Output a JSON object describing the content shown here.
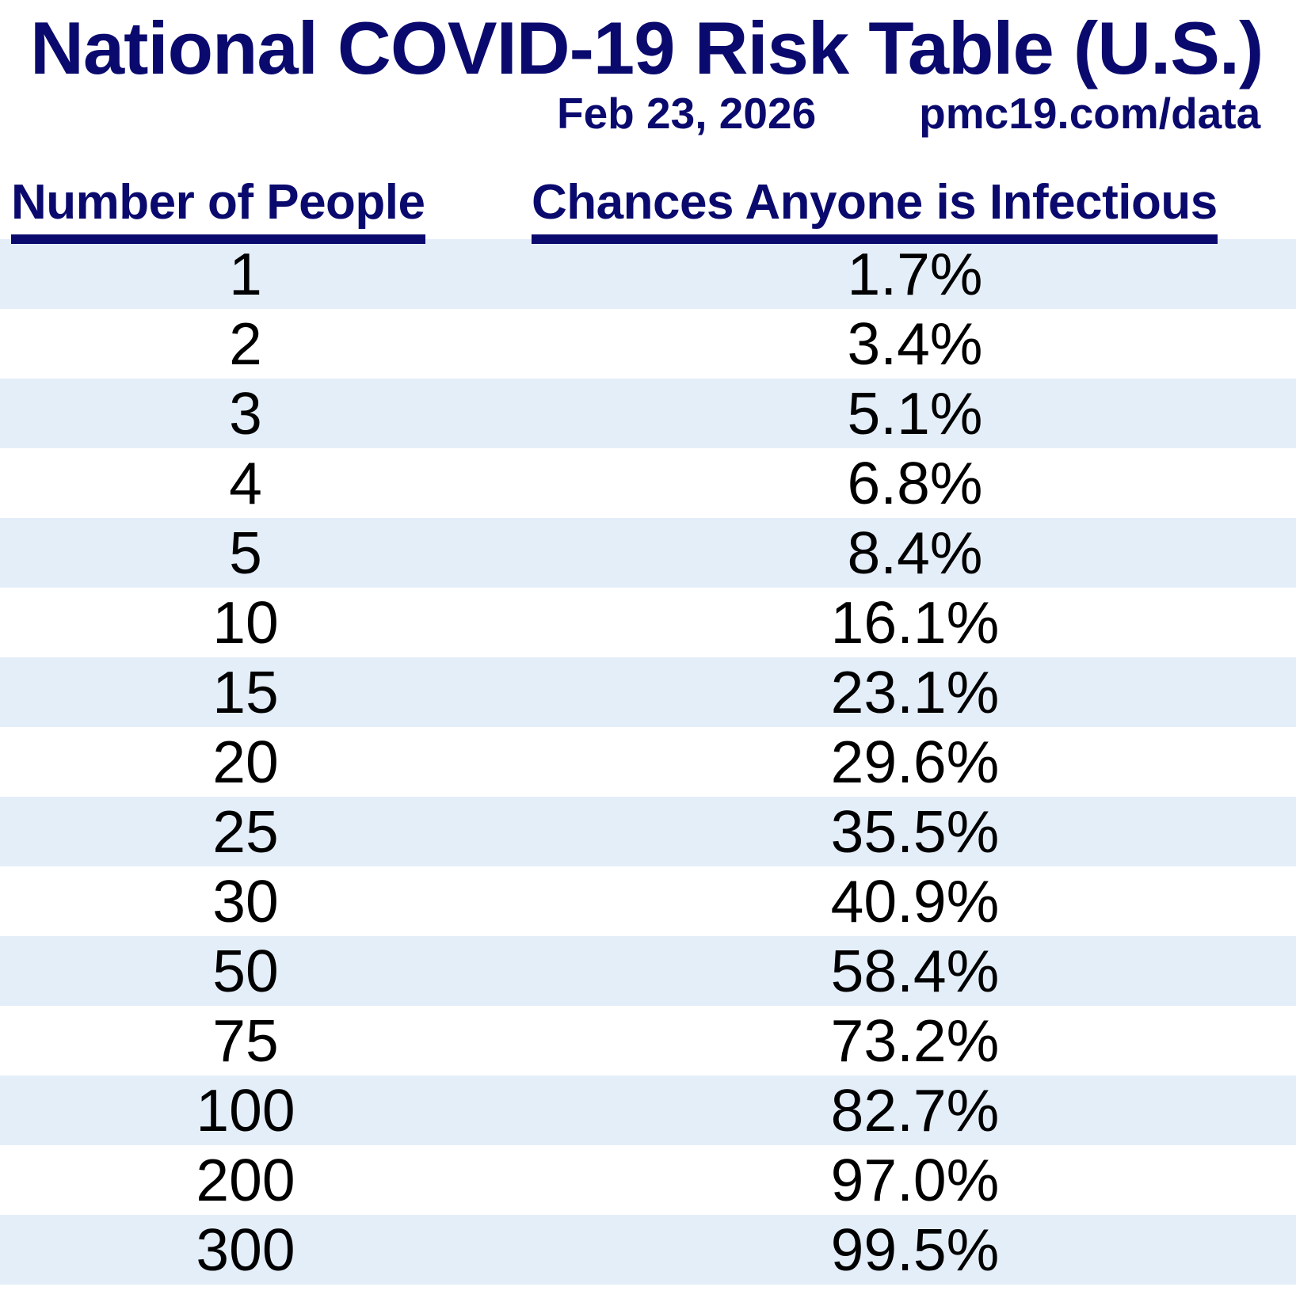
{
  "header": {
    "title": "National COVID-19 Risk Table (U.S.)",
    "date": "Feb 23, 2026",
    "source_url": "pmc19.com/data"
  },
  "colors": {
    "navy": "#0A0A6E",
    "row_alternate": "#E4EEF9",
    "row_text": "#000000",
    "background": "#FFFFFF"
  },
  "chart_data": {
    "type": "table",
    "title": "National COVID-19 Risk Table (U.S.)",
    "date": "Feb 23, 2026",
    "source": "pmc19.com/data",
    "columns": [
      "Number of People",
      "Chances Anyone is Infectious"
    ],
    "rows": [
      [
        "1",
        "1.7%"
      ],
      [
        "2",
        "3.4%"
      ],
      [
        "3",
        "5.1%"
      ],
      [
        "4",
        "6.8%"
      ],
      [
        "5",
        "8.4%"
      ],
      [
        "10",
        "16.1%"
      ],
      [
        "15",
        "23.1%"
      ],
      [
        "20",
        "29.6%"
      ],
      [
        "25",
        "35.5%"
      ],
      [
        "30",
        "40.9%"
      ],
      [
        "50",
        "58.4%"
      ],
      [
        "75",
        "73.2%"
      ],
      [
        "100",
        "82.7%"
      ],
      [
        "200",
        "97.0%"
      ],
      [
        "300",
        "99.5%"
      ]
    ],
    "layout_hints": {
      "striped": true,
      "first_row_shaded": true,
      "header_underline": true
    }
  }
}
